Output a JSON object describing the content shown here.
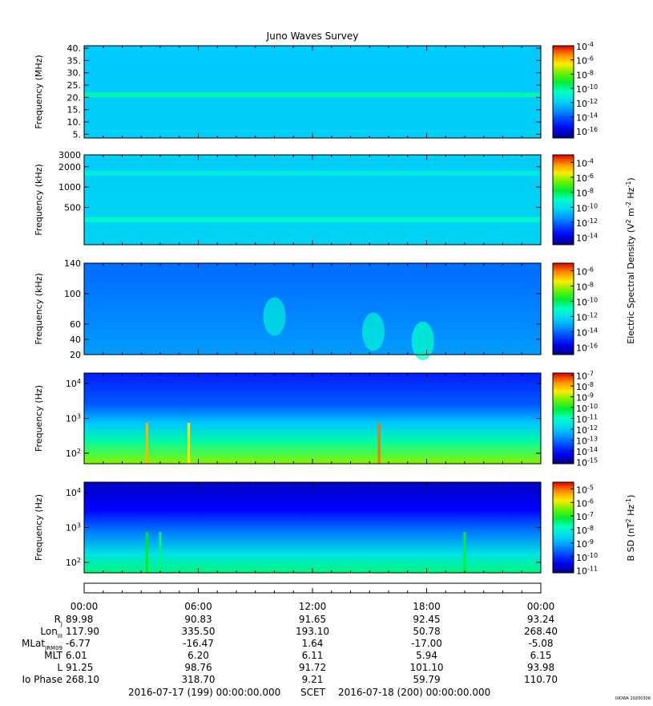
{
  "title": "Juno Waves Survey",
  "watermark": "UIOWA 20200306",
  "chart_data": [
    {
      "type": "heatmap",
      "name": "hfwbr",
      "ylabel": "Frequency (MHz)",
      "ylim": [
        3.5,
        41
      ],
      "yticks": [
        "40.",
        "35.",
        "30.",
        "25.",
        "20.",
        "15.",
        "10.",
        "5."
      ],
      "ytick_values": [
        40,
        35,
        30,
        25,
        20,
        15,
        10,
        5
      ],
      "colorbar_ticks": [
        {
          "base": "10",
          "exp": "-4"
        },
        {
          "base": "10",
          "exp": "-6"
        },
        {
          "base": "10",
          "exp": "-8"
        },
        {
          "base": "10",
          "exp": "-10"
        },
        {
          "base": "10",
          "exp": "-12"
        },
        {
          "base": "10",
          "exp": "-14"
        },
        {
          "base": "10",
          "exp": "-16"
        }
      ],
      "colorbar_range": [
        -17,
        -4
      ],
      "background_level": -12.3,
      "features": [
        {
          "kind": "band",
          "y": 21,
          "level": -10.2
        }
      ]
    },
    {
      "type": "heatmap",
      "name": "hfr",
      "ylabel": "Frequency (kHz)",
      "ylim": [
        140,
        3000
      ],
      "scale": "log",
      "yticks": [
        "3000",
        "2000",
        "1000",
        "500"
      ],
      "ytick_values": [
        3000,
        2000,
        1000,
        500
      ],
      "colorbar_ticks": [
        {
          "base": "10",
          "exp": "-4"
        },
        {
          "base": "10",
          "exp": "-6"
        },
        {
          "base": "10",
          "exp": "-8"
        },
        {
          "base": "10",
          "exp": "-10"
        },
        {
          "base": "10",
          "exp": "-12"
        },
        {
          "base": "10",
          "exp": "-14"
        }
      ],
      "colorbar_range": [
        -15,
        -3
      ],
      "background_level": -10.5,
      "features": [
        {
          "kind": "band",
          "y": 1600,
          "level": -9.5
        },
        {
          "kind": "band",
          "y": 330,
          "level": -9.0
        }
      ]
    },
    {
      "type": "heatmap",
      "name": "lfr-high",
      "ylabel": "Frequency (kHz)",
      "ylim": [
        20,
        140
      ],
      "yticks": [
        "140",
        "100",
        "60",
        "40",
        "20"
      ],
      "ytick_values": [
        140,
        100,
        60,
        40,
        20
      ],
      "colorbar_ticks": [
        {
          "base": "10",
          "exp": "-6"
        },
        {
          "base": "10",
          "exp": "-8"
        },
        {
          "base": "10",
          "exp": "-10"
        },
        {
          "base": "10",
          "exp": "-12"
        },
        {
          "base": "10",
          "exp": "-14"
        },
        {
          "base": "10",
          "exp": "-16"
        }
      ],
      "colorbar_range": [
        -17,
        -5
      ],
      "background_level": -13.7,
      "features": [
        {
          "kind": "blob",
          "x_hours": 10.0,
          "y": 70,
          "level": -11.6
        },
        {
          "kind": "blob",
          "x_hours": 15.2,
          "y": 50,
          "level": -11.4
        },
        {
          "kind": "blob",
          "x_hours": 17.8,
          "y": 38,
          "level": -11.0
        }
      ]
    },
    {
      "type": "heatmap",
      "name": "lfr-low",
      "ylabel": "Frequency (Hz)",
      "ylim": [
        50,
        20000
      ],
      "scale": "log",
      "yticks": [
        {
          "base": "10",
          "exp": "4"
        },
        {
          "base": "10",
          "exp": "3"
        },
        {
          "base": "10",
          "exp": "2"
        }
      ],
      "ytick_values": [
        10000,
        1000,
        100
      ],
      "colorbar_ticks": [
        {
          "base": "10",
          "exp": "-7"
        },
        {
          "base": "10",
          "exp": "-8"
        },
        {
          "base": "10",
          "exp": "-9"
        },
        {
          "base": "10",
          "exp": "-10"
        },
        {
          "base": "10",
          "exp": "-11"
        },
        {
          "base": "10",
          "exp": "-12"
        },
        {
          "base": "10",
          "exp": "-13"
        },
        {
          "base": "10",
          "exp": "-14"
        },
        {
          "base": "10",
          "exp": "-15"
        }
      ],
      "colorbar_range": [
        -15.2,
        -6.8
      ],
      "background_level": -13.0,
      "features": [
        {
          "kind": "spike",
          "x_hours": 3.3,
          "level": -8.0
        },
        {
          "kind": "spike",
          "x_hours": 5.5,
          "level": -8.5
        },
        {
          "kind": "spike",
          "x_hours": 15.5,
          "level": -7.5
        }
      ]
    },
    {
      "type": "heatmap",
      "name": "magnetic",
      "ylabel": "Frequency (Hz)",
      "ylim": [
        50,
        20000
      ],
      "scale": "log",
      "yticks": [
        {
          "base": "10",
          "exp": "4"
        },
        {
          "base": "10",
          "exp": "3"
        },
        {
          "base": "10",
          "exp": "2"
        }
      ],
      "ytick_values": [
        10000,
        1000,
        100
      ],
      "colorbar_ticks": [
        {
          "base": "10",
          "exp": "-5"
        },
        {
          "base": "10",
          "exp": "-6"
        },
        {
          "base": "10",
          "exp": "-7"
        },
        {
          "base": "10",
          "exp": "-8"
        },
        {
          "base": "10",
          "exp": "-9"
        },
        {
          "base": "10",
          "exp": "-10"
        },
        {
          "base": "10",
          "exp": "-11"
        }
      ],
      "colorbar_range": [
        -11.2,
        -4.5
      ],
      "background_level": -10.3,
      "features": [
        {
          "kind": "spike",
          "x_hours": 3.3,
          "level": -7.0
        },
        {
          "kind": "spike",
          "x_hours": 4.0,
          "level": -7.5
        },
        {
          "kind": "spike",
          "x_hours": 20.0,
          "level": -7.2
        }
      ]
    }
  ],
  "colorbar_labels": {
    "electric": {
      "pre": "Electric Spectral Density (V",
      "sup1": "2",
      "mid1": " m",
      "sup2": "-2",
      "mid2": " Hz",
      "sup3": "-1",
      "post": ")"
    },
    "magnetic": {
      "pre": "B SD (nT",
      "sup1": "2",
      "mid1": " Hz",
      "sup2": "-1",
      "post": ")"
    }
  },
  "time_axis": {
    "hours": [
      0,
      6,
      12,
      18,
      24
    ],
    "labels": [
      "00:00",
      "06:00",
      "12:00",
      "18:00",
      "00:00"
    ]
  },
  "ephemeris": [
    {
      "label": "R",
      "sub": "J",
      "values": [
        "89.98",
        "90.83",
        "91.65",
        "92.45",
        "93.24"
      ]
    },
    {
      "label": "Lon",
      "sub": "III",
      "values": [
        "117.90",
        "335.50",
        "193.10",
        "50.78",
        "268.40"
      ]
    },
    {
      "label": "MLat",
      "sub": "JRM09",
      "values": [
        "-6.77",
        "-16.47",
        "1.64",
        "-17.00",
        "-5.08"
      ]
    },
    {
      "label": "MLT",
      "sub": "",
      "values": [
        "6.01",
        "6.20",
        "6.11",
        "5.94",
        "6.15"
      ]
    },
    {
      "label": "L",
      "sub": "",
      "values": [
        "91.25",
        "98.76",
        "91.72",
        "101.10",
        "93.98"
      ]
    },
    {
      "label": "Io Phase",
      "sub": "",
      "values": [
        "268.10",
        "318.70",
        "9.21",
        "59.79",
        "110.70"
      ]
    }
  ],
  "footer": {
    "start": "2016-07-17 (199) 00:00:00.000",
    "scet": "SCET",
    "end": "2016-07-18 (200) 00:00:00.000"
  }
}
